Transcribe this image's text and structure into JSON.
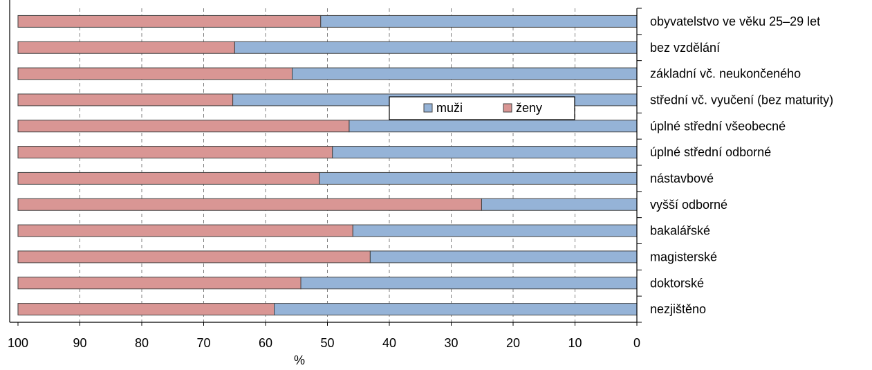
{
  "chart_data": {
    "type": "bar",
    "orientation": "horizontal-stacked-100",
    "x_axis": "reversed",
    "xlabel": "%",
    "xlim": [
      0,
      100
    ],
    "xticks": [
      100,
      90,
      80,
      70,
      60,
      50,
      40,
      30,
      20,
      10,
      0
    ],
    "grid": true,
    "legend": {
      "position": "inside-top-right",
      "entries": [
        "muži",
        "ženy"
      ]
    },
    "categories": [
      "obyvatelstvo ve věku 25–29 let",
      "bez vzdělání",
      "základní vč. neukončeného",
      "střední vč. vyučení (bez maturity)",
      "úplné střední všeobecné",
      "úplné střední odborné",
      "nástavbové",
      "vyšší odborné",
      "bakalářské",
      "magisterské",
      "doktorské",
      "nezjištěno"
    ],
    "series": [
      {
        "name": "muži",
        "color": "#95b3d7",
        "values": [
          51.1,
          65.0,
          55.7,
          65.3,
          46.5,
          49.2,
          51.3,
          25.1,
          45.9,
          43.1,
          54.3,
          58.6
        ]
      },
      {
        "name": "ženy",
        "color": "#d99694",
        "values": [
          48.9,
          35.0,
          44.3,
          34.7,
          53.5,
          50.8,
          48.7,
          74.9,
          54.1,
          56.9,
          45.7,
          41.4
        ]
      }
    ]
  }
}
